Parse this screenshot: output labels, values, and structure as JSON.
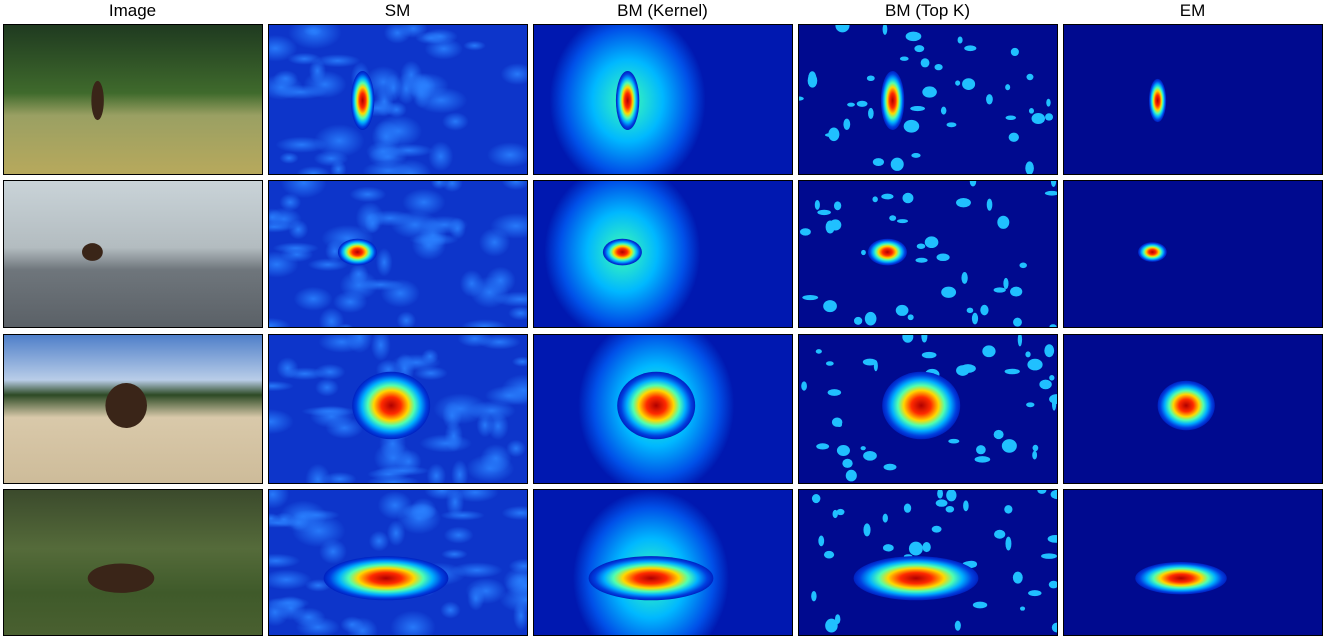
{
  "columns": [
    "Image",
    "SM",
    "BM (Kernel)",
    "BM (Top K)",
    "EM"
  ]
}
